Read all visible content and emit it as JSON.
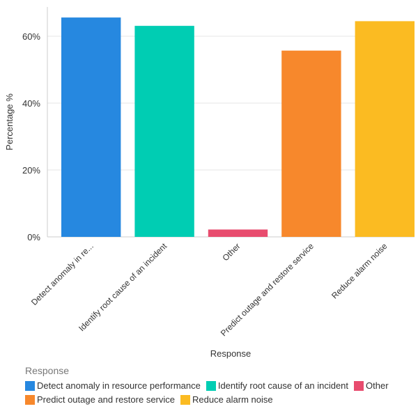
{
  "chart_data": {
    "type": "bar",
    "xlabel": "Response",
    "ylabel": "Percentage %",
    "ylim": [
      0,
      68
    ],
    "yticks": [
      "0%",
      "20%",
      "40%",
      "60%"
    ],
    "grid": true,
    "categories": [
      "Detect anomaly in re...",
      "Identify root cause of an incident",
      "Other",
      "Predict outage and restore service",
      "Reduce alarm noise"
    ],
    "values": [
      65.6,
      63.1,
      2.2,
      55.7,
      64.5
    ],
    "colors": [
      "#2688e0",
      "#00cdb3",
      "#e84c6e",
      "#f7882c",
      "#fbbb22"
    ],
    "legend": {
      "title": "Response",
      "placement": "bottom",
      "entries": [
        "Detect anomaly in resource performance",
        "Identify root cause of an incident",
        "Other",
        "Predict outage and restore service",
        "Reduce alarm noise"
      ]
    }
  }
}
